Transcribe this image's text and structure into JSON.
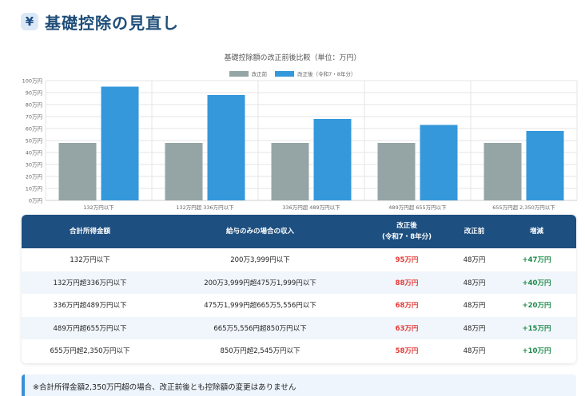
{
  "header": {
    "icon": "yen-icon",
    "icon_glyph": "¥",
    "title": "基礎控除の見直し"
  },
  "chart_data": {
    "type": "bar",
    "title": "基礎控除額の改正前後比較（単位：万円）",
    "categories": [
      "132万円以下",
      "132万円超 336万円以下",
      "336万円超 489万円以下",
      "489万円超 655万円以下",
      "655万円超 2,350万円以下"
    ],
    "series": [
      {
        "name": "改正前",
        "color": "#95a5a6",
        "values": [
          48,
          48,
          48,
          48,
          48
        ]
      },
      {
        "name": "改正後（令和7・8年分）",
        "color": "#3498db",
        "values": [
          95,
          88,
          68,
          63,
          58
        ]
      }
    ],
    "ylim": [
      0,
      100
    ],
    "yticks": [
      "0万円",
      "10万円",
      "20万円",
      "30万円",
      "40万円",
      "50万円",
      "60万円",
      "70万円",
      "80万円",
      "90万円",
      "100万円"
    ],
    "grid": true,
    "legend": "top"
  },
  "table": {
    "headers": [
      "合計所得金額",
      "給与のみの場合の収入",
      "改正後\n(令和7・8年分)",
      "改正前",
      "増減"
    ],
    "rows": [
      [
        "132万円以下",
        "200万3,999円以下",
        "95万円",
        "48万円",
        "+47万円"
      ],
      [
        "132万円超336万円以下",
        "200万3,999円超475万1,999円以下",
        "88万円",
        "48万円",
        "+40万円"
      ],
      [
        "336万円超489万円以下",
        "475万1,999円超665万5,556円以下",
        "68万円",
        "48万円",
        "+20万円"
      ],
      [
        "489万円超655万円以下",
        "665万5,556円超850万円以下",
        "63万円",
        "48万円",
        "+15万円"
      ],
      [
        "655万円超2,350万円以下",
        "850万円超2,545万円以下",
        "58万円",
        "48万円",
        "+10万円"
      ]
    ]
  },
  "note": "※合計所得金額2,350万円超の場合、改正前後とも控除額の変更はありません"
}
